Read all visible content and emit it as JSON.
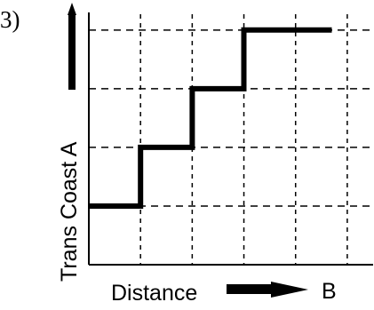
{
  "problem_number": "3)",
  "chart_data": {
    "type": "line",
    "title": "",
    "xlabel": "Distance",
    "xlabel_arrow_end": "B",
    "ylabel": "Trans Coast A",
    "grid": true,
    "grid_style": "dashed",
    "xlim": [
      0,
      5.5
    ],
    "ylim": [
      0,
      4.3
    ],
    "x_gridlines": [
      1,
      2,
      3,
      4,
      5
    ],
    "y_gridlines": [
      1,
      2,
      3,
      4
    ],
    "series": [
      {
        "step_points": [
          [
            0,
            1
          ],
          [
            1,
            1
          ],
          [
            1,
            2
          ],
          [
            2,
            2
          ],
          [
            2,
            3
          ],
          [
            3,
            3
          ],
          [
            3,
            4
          ],
          [
            4.7,
            4
          ]
        ]
      }
    ]
  },
  "colors": {
    "line": "#000000",
    "grid": "#000000",
    "background": "#ffffff"
  },
  "icons": {
    "y_axis_arrow": "up-arrow-icon",
    "x_label_arrow": "right-arrow-icon"
  }
}
